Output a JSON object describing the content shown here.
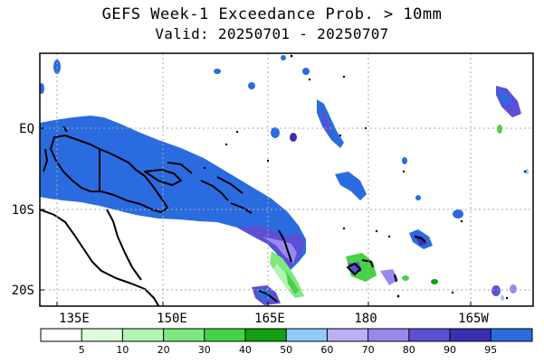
{
  "title": "GEFS Week-1 Exceedance Prob. > 10mm",
  "subtitle": "Valid: 20250701 - 20250707",
  "axes": {
    "lon_labels": [
      "135E",
      "150E",
      "165E",
      "180",
      "165W"
    ],
    "lat_labels": [
      "EQ",
      "10S",
      "20S"
    ],
    "lon_range": [
      131,
      206
    ],
    "lat_range": [
      6,
      -22
    ]
  },
  "colorbar": {
    "labels": [
      "5",
      "10",
      "20",
      "30",
      "40",
      "50",
      "60",
      "70",
      "80",
      "90",
      "95"
    ],
    "colors": [
      "#ffffff",
      "#dcfcdc",
      "#b2f5b2",
      "#7ee87e",
      "#46d246",
      "#10a010",
      "#90caf7",
      "#b9b0f5",
      "#9988ee",
      "#5c4fd6",
      "#3a2fb0",
      "#2a6ce0"
    ]
  }
}
